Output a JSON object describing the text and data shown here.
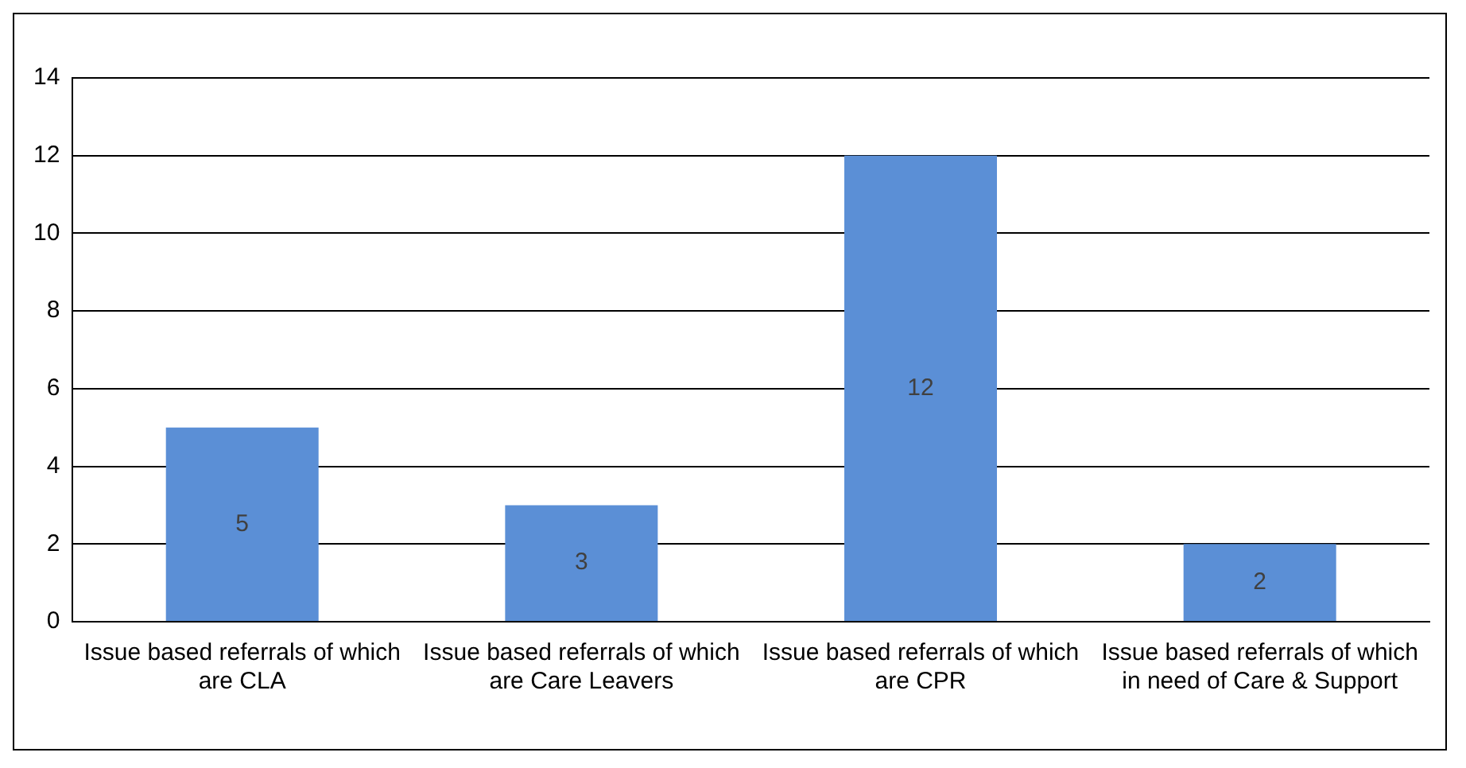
{
  "chart_data": {
    "type": "bar",
    "categories": [
      "Issue based referrals of which are CLA",
      "Issue based referrals of which are Care Leavers",
      "Issue based referrals of which are CPR",
      "Issue based referrals of which in need of Care & Support"
    ],
    "values": [
      5,
      3,
      12,
      2
    ],
    "color": "#5b8fd6",
    "ylim": [
      0,
      14
    ],
    "yticks": [
      0,
      2,
      4,
      6,
      8,
      10,
      12,
      14
    ],
    "grid": "y",
    "data_labels": true
  }
}
